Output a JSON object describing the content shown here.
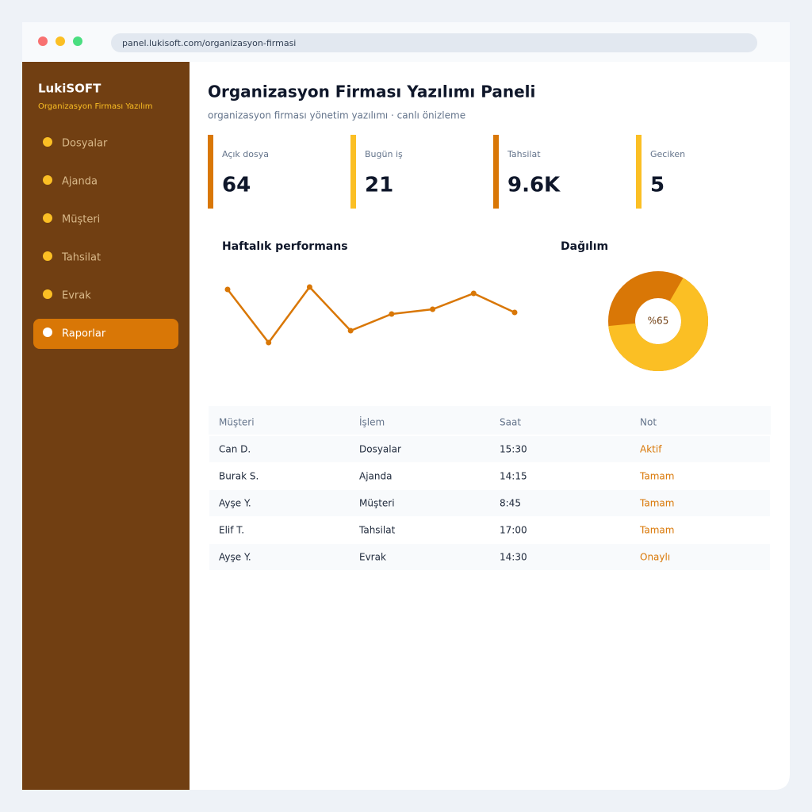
{
  "browser": {
    "url": "panel.lukisoft.com/organizasyon-firmasi"
  },
  "sidebar": {
    "brand": "LukiSOFT",
    "tagline": "Organizasyon Firması Yazılım",
    "nav": [
      "Dosyalar",
      "Ajanda",
      "Müşteri",
      "Tahsilat",
      "Evrak",
      "Raporlar"
    ],
    "active": 5
  },
  "header": {
    "title": "Organizasyon Firması Yazılımı Paneli",
    "subtitle": "organizasyon firması yönetim yazılımı · canlı önizleme"
  },
  "kpis": [
    {
      "label": "Açık dosya",
      "value": "64",
      "color": "#d97706"
    },
    {
      "label": "Bugün iş",
      "value": "21",
      "color": "#fbbf24"
    },
    {
      "label": "Tahsilat",
      "value": "9.6K",
      "color": "#d97706"
    },
    {
      "label": "Geciken",
      "value": "5",
      "color": "#fbbf24"
    }
  ],
  "line_chart": {
    "type": "line",
    "title": "Haftalık performans",
    "values": [
      95,
      28,
      98,
      43,
      64,
      70,
      90,
      66
    ],
    "color": "#d97706"
  },
  "donut_chart": {
    "type": "pie",
    "title": "Dağılım",
    "value": 65,
    "value_label": "%65",
    "colors": [
      "#fbbf24",
      "#d97706"
    ]
  },
  "table": {
    "columns": [
      "Müşteri",
      "İşlem",
      "Saat",
      "Not"
    ],
    "rows": [
      [
        "Can D.",
        "Dosyalar",
        "15:30",
        "Aktif"
      ],
      [
        "Burak S.",
        "Ajanda",
        "14:15",
        "Tamam"
      ],
      [
        "Ayşe Y.",
        "Müşteri",
        "8:45",
        "Tamam"
      ],
      [
        "Elif T.",
        "Tahsilat",
        "17:00",
        "Tamam"
      ],
      [
        "Ayşe Y.",
        "Evrak",
        "14:30",
        "Onaylı"
      ]
    ]
  }
}
